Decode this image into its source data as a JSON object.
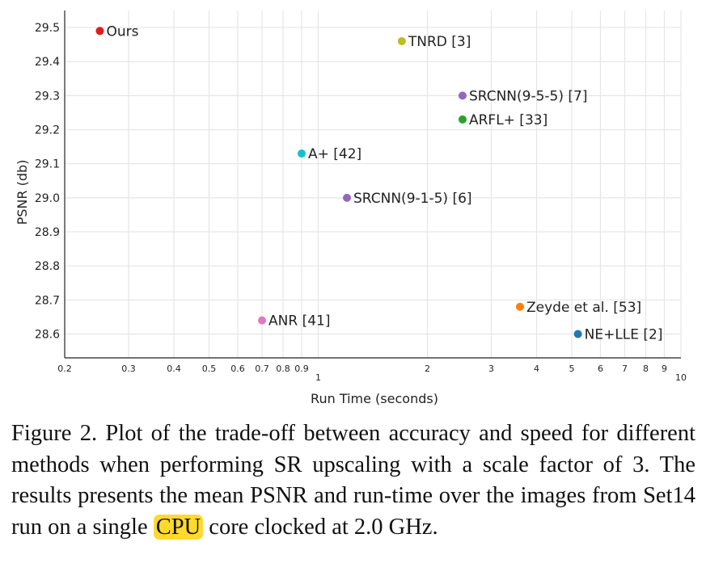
{
  "chart_data": {
    "type": "scatter",
    "xlabel": "Run Time (seconds)",
    "ylabel": "PSNR (db)",
    "x_scale": "log",
    "xlim": [
      0.2,
      10
    ],
    "ylim": [
      28.53,
      29.55
    ],
    "grid": true,
    "x_ticks": [
      {
        "v": 0.2,
        "label": "0.2"
      },
      {
        "v": 0.3,
        "label": "0.3"
      },
      {
        "v": 0.4,
        "label": "0.4"
      },
      {
        "v": 0.5,
        "label": "0.5"
      },
      {
        "v": 0.6,
        "label": "0.6"
      },
      {
        "v": 0.7,
        "label": "0.7"
      },
      {
        "v": 0.8,
        "label": "0.8"
      },
      {
        "v": 0.9,
        "label": "0.9"
      },
      {
        "v": 1,
        "label": "1"
      },
      {
        "v": 2,
        "label": "2"
      },
      {
        "v": 3,
        "label": "3"
      },
      {
        "v": 4,
        "label": "4"
      },
      {
        "v": 5,
        "label": "5"
      },
      {
        "v": 6,
        "label": "6"
      },
      {
        "v": 7,
        "label": "7"
      },
      {
        "v": 8,
        "label": "8"
      },
      {
        "v": 9,
        "label": "9"
      },
      {
        "v": 10,
        "label": "10"
      }
    ],
    "y_ticks": [
      {
        "v": 28.6,
        "label": "28.6"
      },
      {
        "v": 28.7,
        "label": "28.7"
      },
      {
        "v": 28.8,
        "label": "28.8"
      },
      {
        "v": 28.9,
        "label": "28.9"
      },
      {
        "v": 29.0,
        "label": "29.0"
      },
      {
        "v": 29.1,
        "label": "29.1"
      },
      {
        "v": 29.2,
        "label": "29.2"
      },
      {
        "v": 29.3,
        "label": "29.3"
      },
      {
        "v": 29.4,
        "label": "29.4"
      },
      {
        "v": 29.5,
        "label": "29.5"
      }
    ],
    "points": [
      {
        "label": "Ours",
        "x": 0.25,
        "y": 29.49,
        "color": "#e31a1c"
      },
      {
        "label": "TNRD [3]",
        "x": 1.7,
        "y": 29.46,
        "color": "#bcbd22"
      },
      {
        "label": "SRCNN(9-5-5) [7]",
        "x": 2.5,
        "y": 29.3,
        "color": "#9467bd"
      },
      {
        "label": "ARFL+ [33]",
        "x": 2.5,
        "y": 29.23,
        "color": "#2ca02c"
      },
      {
        "label": "A+ [42]",
        "x": 0.9,
        "y": 29.13,
        "color": "#17becf"
      },
      {
        "label": "SRCNN(9-1-5) [6]",
        "x": 1.2,
        "y": 29.0,
        "color": "#9467bd"
      },
      {
        "label": "Zeyde et al. [53]",
        "x": 3.6,
        "y": 28.68,
        "color": "#ff7f0e"
      },
      {
        "label": "ANR [41]",
        "x": 0.7,
        "y": 28.64,
        "color": "#e377c2"
      },
      {
        "label": "NE+LLE [2]",
        "x": 5.2,
        "y": 28.6,
        "color": "#1f77b4"
      }
    ]
  },
  "caption": {
    "before": "Figure 2. Plot of the trade-off between accuracy and speed for different methods when performing SR upscaling with a scale factor of 3.  The results presents the mean PSNR and run-time over the images from Set14 run on a single ",
    "highlight": "CPU",
    "after": " core clocked at 2.0 GHz."
  }
}
